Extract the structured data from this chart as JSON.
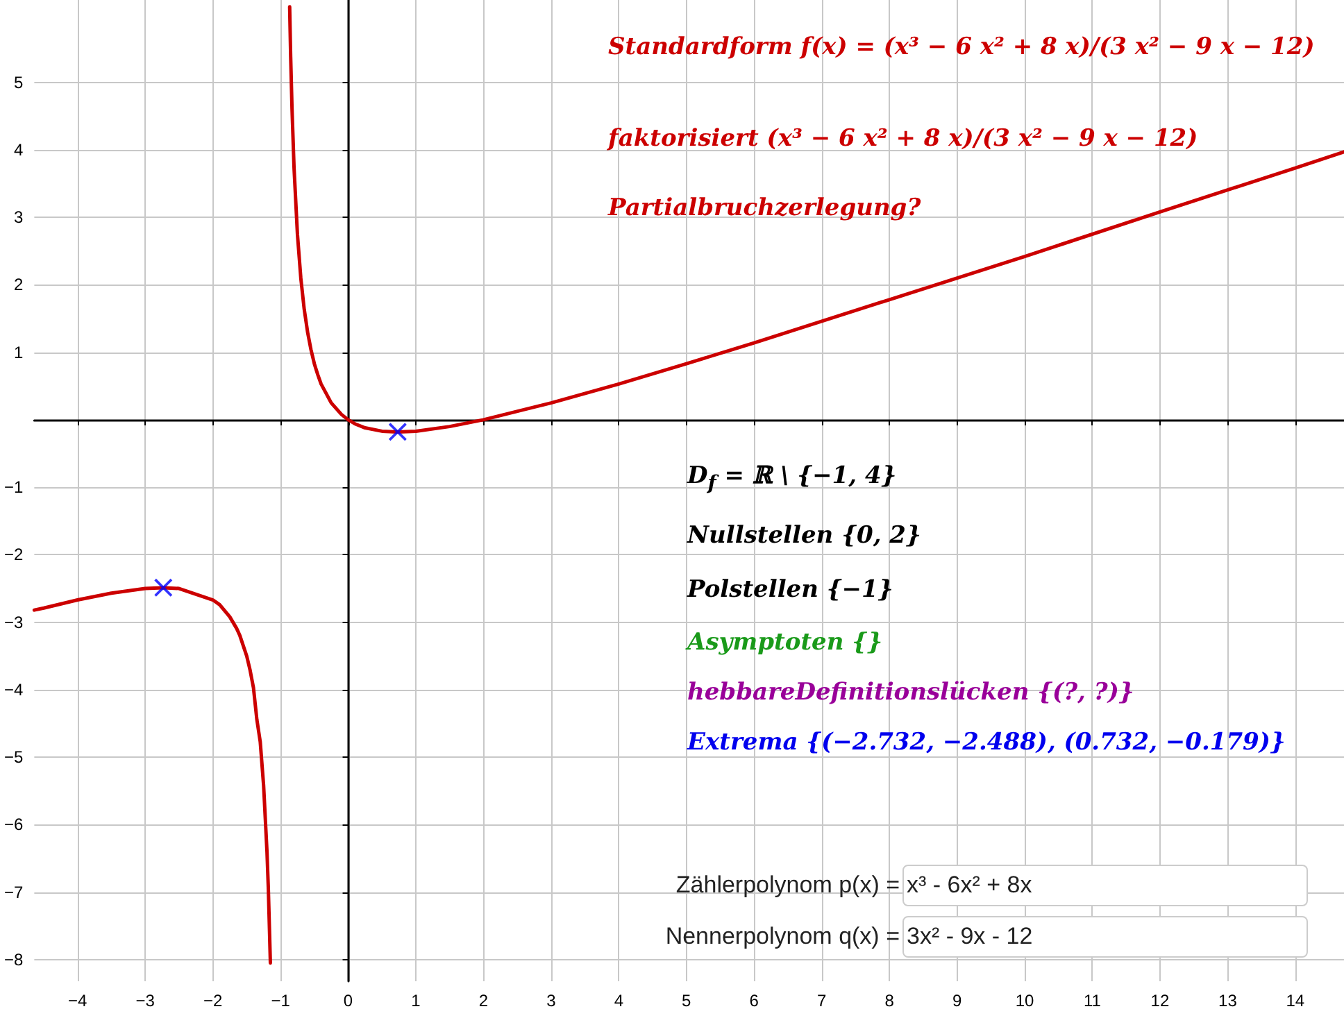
{
  "chart_data": {
    "type": "line",
    "xlim": [
      -4.64,
      14.72
    ],
    "ylim": [
      -8.32,
      6.22
    ],
    "xticks": [
      -4,
      -3,
      -2,
      -1,
      0,
      1,
      2,
      3,
      4,
      5,
      6,
      7,
      8,
      9,
      10,
      11,
      12,
      13,
      14
    ],
    "yticks": [
      -8,
      -7,
      -6,
      -5,
      -4,
      -3,
      -2,
      -1,
      1,
      2,
      3,
      4,
      5
    ],
    "grid": true,
    "series": [
      {
        "color": "#cc0000",
        "marker": "none",
        "line_style": "solid",
        "x": [
          -4.64,
          -4.5,
          -4,
          -3.5,
          -3,
          -2.732,
          -2.5,
          -2,
          -1.9,
          -1.75,
          -1.65,
          -1.6,
          -1.5,
          -1.45,
          -1.4,
          -1.35,
          -1.3,
          -1.25,
          -1.2,
          -1.18,
          -1.15,
          -1,
          -0.865,
          -0.85,
          -0.83,
          -0.8,
          -0.75,
          -0.7,
          -0.65,
          -0.6,
          -0.55,
          -0.5,
          -0.45,
          -0.4,
          -0.25,
          -0.1,
          0,
          0.1,
          0.25,
          0.5,
          0.732,
          1,
          1.5,
          2,
          3,
          4,
          5,
          6,
          8,
          10,
          12,
          14,
          14.72
        ],
        "values": [
          -2.82,
          -2.79,
          -2.67,
          -2.57,
          -2.5,
          -2.49,
          -2.5,
          -2.67,
          -2.74,
          -2.92,
          -3.09,
          -3.2,
          -3.5,
          -3.71,
          -3.97,
          -4.44,
          -4.77,
          -5.42,
          -6.4,
          -6.95,
          -8.05,
          null,
          6.12,
          5.38,
          4.61,
          3.73,
          2.75,
          2.1,
          1.64,
          1.3,
          1.04,
          0.83,
          0.67,
          0.53,
          0.25,
          0.08,
          0,
          -0.06,
          -0.12,
          -0.17,
          -0.18,
          -0.17,
          -0.1,
          0,
          0.25,
          0.53,
          0.83,
          1.14,
          1.78,
          2.42,
          3.08,
          3.73,
          3.97
        ]
      },
      {
        "type": "scatter",
        "color": "#0000ff",
        "marker": "cross",
        "x": [
          -2.732,
          0.732
        ],
        "values": [
          -2.488,
          -0.179
        ]
      }
    ],
    "annotations": [
      "Standardform f(x) = (x³ − 6 x² + 8 x)/(3 x² − 9 x − 12)",
      "faktorisiert (x³ − 6 x² + 8 x)/(3 x² − 9 x − 12)",
      "Partialbruchzerlegung?",
      "D$_{f}$ = ℝ \\ {−1, 4}",
      "Nullstellen {0, 2}",
      "Polstellen {−1}",
      "Asymptoten {}",
      "hebbareDefinitionslücken {(?, ?)}",
      "Extrema {(−2.732, −2.488), (0.732, −0.179)}",
      "Zählerpolynom p(x) =",
      "x³ - 6x² + 8x",
      "Nennerpolynom q(x) =",
      "3x² - 9x - 12"
    ]
  }
}
